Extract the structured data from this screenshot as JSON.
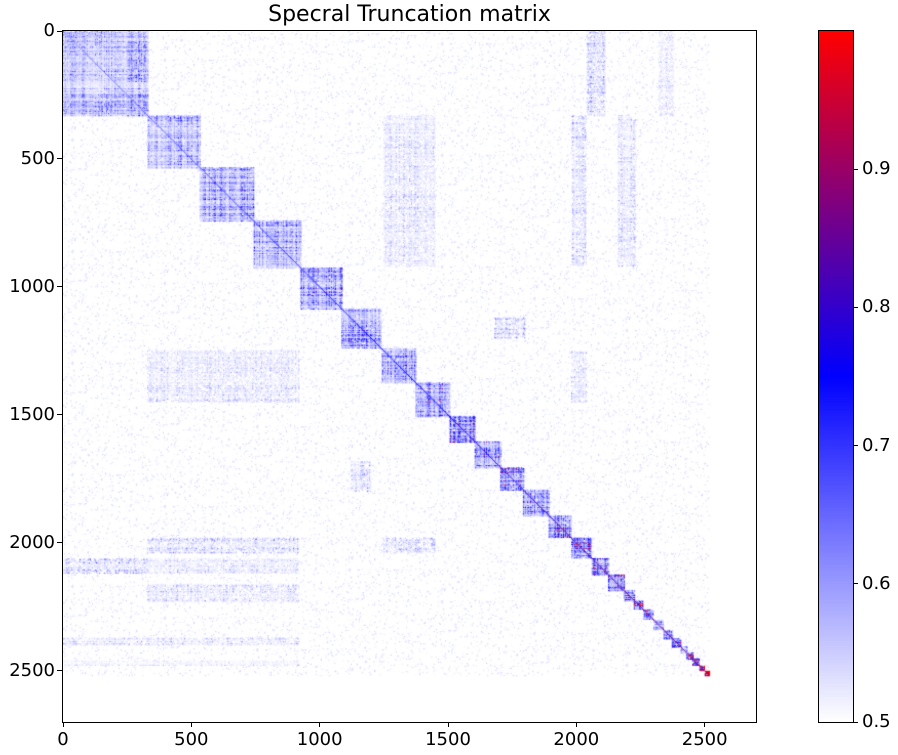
{
  "chart_data": {
    "type": "heatmap",
    "title": "Specral Truncation matrix",
    "xlabel": "",
    "ylabel": "",
    "x_range": [
      0,
      2700
    ],
    "y_range": [
      0,
      2700
    ],
    "y_inverted": true,
    "matrix_size": 2520,
    "x_ticks": [
      0,
      500,
      1000,
      1500,
      2000,
      2500
    ],
    "y_ticks": [
      0,
      500,
      1000,
      1500,
      2000,
      2500
    ],
    "x_tick_labels": [
      "0",
      "500",
      "1000",
      "1500",
      "2000",
      "2500"
    ],
    "y_tick_labels": [
      "0",
      "500",
      "1000",
      "1500",
      "2000",
      "2500"
    ],
    "colorbar": {
      "vmin": 0.5,
      "vmax": 1.0,
      "ticks": [
        0.5,
        0.6,
        0.7,
        0.8,
        0.9
      ],
      "tick_labels": [
        "0.5",
        "0.6",
        "0.7",
        "0.8",
        "0.9"
      ],
      "colormap": "white-blue-red (bwr upper half)",
      "colors": {
        "low": "#ffffff",
        "mid": "#0000ff",
        "high": "#ff0000"
      }
    },
    "grid": false,
    "legend": null,
    "diagonal_blocks": [
      {
        "start": 0,
        "end": 330,
        "intensity": 0.56
      },
      {
        "start": 330,
        "end": 535,
        "intensity": 0.57
      },
      {
        "start": 535,
        "end": 742,
        "intensity": 0.59
      },
      {
        "start": 742,
        "end": 925,
        "intensity": 0.58
      },
      {
        "start": 925,
        "end": 1085,
        "intensity": 0.6
      },
      {
        "start": 1085,
        "end": 1240,
        "intensity": 0.6
      },
      {
        "start": 1240,
        "end": 1375,
        "intensity": 0.6
      },
      {
        "start": 1375,
        "end": 1505,
        "intensity": 0.61
      },
      {
        "start": 1505,
        "end": 1605,
        "intensity": 0.62
      },
      {
        "start": 1605,
        "end": 1705,
        "intensity": 0.62
      },
      {
        "start": 1705,
        "end": 1795,
        "intensity": 0.62
      },
      {
        "start": 1795,
        "end": 1895,
        "intensity": 0.62
      },
      {
        "start": 1895,
        "end": 1980,
        "intensity": 0.64
      },
      {
        "start": 1980,
        "end": 2060,
        "intensity": 0.65
      },
      {
        "start": 2060,
        "end": 2125,
        "intensity": 0.66
      },
      {
        "start": 2125,
        "end": 2185,
        "intensity": 0.68
      },
      {
        "start": 2185,
        "end": 2225,
        "intensity": 0.68
      },
      {
        "start": 2225,
        "end": 2260,
        "intensity": 0.7
      },
      {
        "start": 2260,
        "end": 2300,
        "intensity": 0.68
      },
      {
        "start": 2300,
        "end": 2340,
        "intensity": 0.6
      },
      {
        "start": 2340,
        "end": 2375,
        "intensity": 0.66
      },
      {
        "start": 2375,
        "end": 2405,
        "intensity": 0.74
      },
      {
        "start": 2405,
        "end": 2430,
        "intensity": 0.6
      },
      {
        "start": 2430,
        "end": 2455,
        "intensity": 0.7
      },
      {
        "start": 2455,
        "end": 2480,
        "intensity": 0.76
      },
      {
        "start": 2480,
        "end": 2500,
        "intensity": 0.82
      },
      {
        "start": 2500,
        "end": 2520,
        "intensity": 0.86
      }
    ],
    "sub_blocks": [
      {
        "start": 0,
        "end": 200,
        "intensity": 0.55
      },
      {
        "start": 250,
        "end": 330,
        "intensity": 0.6
      }
    ],
    "off_diagonal_bands": [
      {
        "rows": [
          0,
          330
        ],
        "cols": [
          2040,
          2110
        ],
        "intensity": 0.54
      },
      {
        "rows": [
          0,
          330
        ],
        "cols": [
          2320,
          2380
        ],
        "intensity": 0.53
      },
      {
        "rows": [
          330,
          920
        ],
        "cols": [
          1980,
          2040
        ],
        "intensity": 0.54
      },
      {
        "rows": [
          330,
          920
        ],
        "cols": [
          1250,
          1450
        ],
        "intensity": 0.53
      },
      {
        "rows": [
          330,
          920
        ],
        "cols": [
          2160,
          2230
        ],
        "intensity": 0.53
      },
      {
        "rows": [
          2060,
          2120
        ],
        "cols": [
          0,
          330
        ],
        "intensity": 0.55
      },
      {
        "rows": [
          2060,
          2120
        ],
        "cols": [
          330,
          920
        ],
        "intensity": 0.53
      },
      {
        "rows": [
          1250,
          1450
        ],
        "cols": [
          330,
          920
        ],
        "intensity": 0.53
      },
      {
        "rows": [
          1980,
          2040
        ],
        "cols": [
          330,
          920
        ],
        "intensity": 0.54
      },
      {
        "rows": [
          2160,
          2230
        ],
        "cols": [
          330,
          920
        ],
        "intensity": 0.53
      },
      {
        "rows": [
          2370,
          2400
        ],
        "cols": [
          0,
          920
        ],
        "intensity": 0.53
      },
      {
        "rows": [
          2460,
          2480
        ],
        "cols": [
          0,
          920
        ],
        "intensity": 0.52
      },
      {
        "rows": [
          1120,
          1200
        ],
        "cols": [
          1680,
          1800
        ],
        "intensity": 0.54
      },
      {
        "rows": [
          1680,
          1800
        ],
        "cols": [
          1120,
          1200
        ],
        "intensity": 0.54
      },
      {
        "rows": [
          1250,
          1450
        ],
        "cols": [
          1980,
          2040
        ],
        "intensity": 0.54
      },
      {
        "rows": [
          1980,
          2040
        ],
        "cols": [
          1250,
          1450
        ],
        "intensity": 0.54
      }
    ]
  }
}
